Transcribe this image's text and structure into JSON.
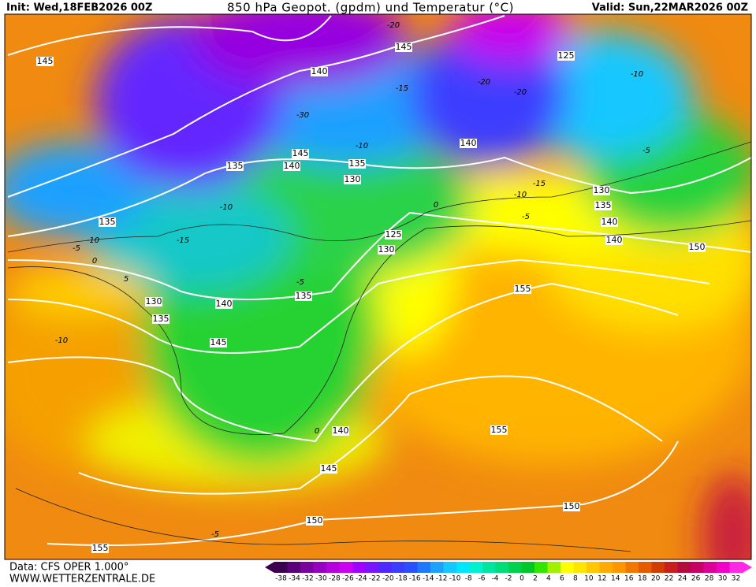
{
  "header": {
    "init": "Init: Wed,18FEB2026 00Z",
    "title": "850 hPa Geopot. (gpdm) und Temperatur (°C)",
    "valid": "Valid: Sun,22MAR2026 00Z"
  },
  "footer": {
    "source": "Data: CFS OPER 1.000°",
    "site": "WWW.WETTERZENTRALE.DE"
  },
  "geopotential_labels": [
    145,
    145,
    125,
    140,
    140,
    145,
    140,
    135,
    135,
    130,
    130,
    135,
    140,
    140,
    150,
    135,
    125,
    130,
    130,
    135,
    135,
    140,
    145,
    155,
    155,
    140,
    145,
    150,
    150,
    155
  ],
  "temperature_labels": [
    -20,
    -20,
    -15,
    -20,
    -10,
    -5,
    -30,
    -10,
    -15,
    -10,
    -5,
    0,
    -10,
    -15,
    -10,
    -5,
    0,
    5,
    -5,
    -10,
    0,
    -5
  ],
  "colorbar": {
    "labels": [
      -38,
      -34,
      -32,
      -30,
      -28,
      -26,
      -24,
      -22,
      -20,
      -18,
      -16,
      -14,
      -12,
      -10,
      -8,
      -6,
      -4,
      -2,
      0,
      2,
      4,
      6,
      8,
      10,
      12,
      14,
      16,
      18,
      20,
      22,
      24,
      26,
      28,
      30,
      32
    ],
    "colors": [
      "#3d0050",
      "#5a0078",
      "#7a00a0",
      "#9600c0",
      "#b400dc",
      "#cc00f0",
      "#a000ff",
      "#7a14ff",
      "#5028ff",
      "#3c3cff",
      "#2850ff",
      "#1e78ff",
      "#1ea0ff",
      "#14c8ff",
      "#00e6ff",
      "#00f0d2",
      "#00e6a0",
      "#00dc78",
      "#00d250",
      "#00c828",
      "#32e600",
      "#a0f000",
      "#ffff00",
      "#ffe600",
      "#ffc800",
      "#ffaa00",
      "#ff9600",
      "#f07800",
      "#e65a00",
      "#d23c00",
      "#c81e1e",
      "#b40a3c",
      "#c80064",
      "#dc0096",
      "#f000c8",
      "#ff28e6"
    ]
  }
}
